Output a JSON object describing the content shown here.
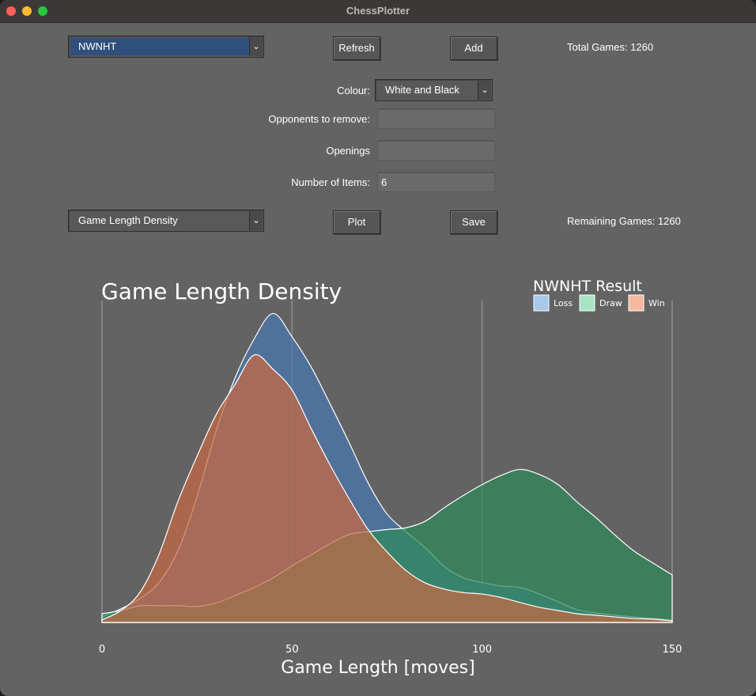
{
  "window": {
    "title": "ChessPlotter"
  },
  "controls": {
    "player_select": "NWNHT",
    "refresh_label": "Refresh",
    "add_label": "Add",
    "total_games": "Total Games: 1260",
    "colour_label": "Colour:",
    "colour_value": "White and Black",
    "opponents_label": "Opponents to remove:",
    "opponents_value": "",
    "openings_label": "Openings",
    "openings_value": "",
    "items_label": "Number of Items:",
    "items_value": "6",
    "plot_type": "Game Length Density",
    "plot_label": "Plot",
    "save_label": "Save",
    "remaining_games": "Remaining Games: 1260"
  },
  "colors": {
    "loss": "#4a77b0",
    "draw": "#2f8a5a",
    "win": "#c86a42",
    "background": "#636363"
  },
  "chart_data": {
    "type": "area",
    "title": "Game Length Density",
    "xlabel": "Game Length [moves]",
    "ylabel": "",
    "xlim": [
      0,
      150
    ],
    "xticks": [
      "0",
      "50",
      "100",
      "150"
    ],
    "grid": true,
    "legend": {
      "title": "NWNHT Result",
      "placement": "top-right",
      "entries": [
        "Loss",
        "Draw",
        "Win"
      ]
    },
    "series": [
      {
        "name": "Loss",
        "x": [
          0,
          5,
          10,
          15,
          20,
          25,
          30,
          35,
          40,
          45,
          50,
          55,
          60,
          65,
          70,
          75,
          80,
          85,
          90,
          95,
          100,
          105,
          110,
          115,
          120,
          125,
          130,
          135,
          140,
          145,
          150
        ],
        "values": [
          0.0023,
          0.0055,
          0.0096,
          0.016,
          0.0288,
          0.0505,
          0.0767,
          0.0981,
          0.1137,
          0.124,
          0.1146,
          0.1026,
          0.0877,
          0.0722,
          0.056,
          0.0435,
          0.0364,
          0.03,
          0.0225,
          0.018,
          0.016,
          0.0146,
          0.014,
          0.0115,
          0.0083,
          0.0051,
          0.0038,
          0.0029,
          0.0022,
          0.0016,
          0.001
        ]
      },
      {
        "name": "Draw",
        "x": [
          0,
          5,
          10,
          15,
          20,
          25,
          30,
          35,
          40,
          45,
          50,
          55,
          60,
          65,
          70,
          75,
          80,
          85,
          90,
          95,
          100,
          105,
          110,
          115,
          120,
          125,
          130,
          135,
          140,
          145,
          150
        ],
        "values": [
          0.0035,
          0.0048,
          0.0067,
          0.0067,
          0.0067,
          0.0064,
          0.0078,
          0.0108,
          0.014,
          0.0179,
          0.0227,
          0.0271,
          0.0316,
          0.0353,
          0.0364,
          0.0373,
          0.038,
          0.0406,
          0.046,
          0.0509,
          0.0553,
          0.059,
          0.0614,
          0.0594,
          0.0553,
          0.0483,
          0.042,
          0.035,
          0.0286,
          0.0238,
          0.0191
        ]
      },
      {
        "name": "Win",
        "x": [
          0,
          5,
          10,
          15,
          20,
          25,
          30,
          35,
          40,
          45,
          50,
          55,
          60,
          65,
          70,
          75,
          80,
          85,
          90,
          95,
          100,
          105,
          110,
          115,
          120,
          125,
          130,
          135,
          140,
          145,
          150
        ],
        "values": [
          0.001,
          0.0048,
          0.0121,
          0.0273,
          0.0487,
          0.0667,
          0.0833,
          0.0955,
          0.1073,
          0.1016,
          0.0933,
          0.0779,
          0.0632,
          0.0497,
          0.0373,
          0.0283,
          0.0208,
          0.0159,
          0.0134,
          0.012,
          0.0114,
          0.01,
          0.008,
          0.0061,
          0.0048,
          0.0035,
          0.0029,
          0.0022,
          0.0016,
          0.0013,
          0.0006
        ]
      }
    ]
  }
}
